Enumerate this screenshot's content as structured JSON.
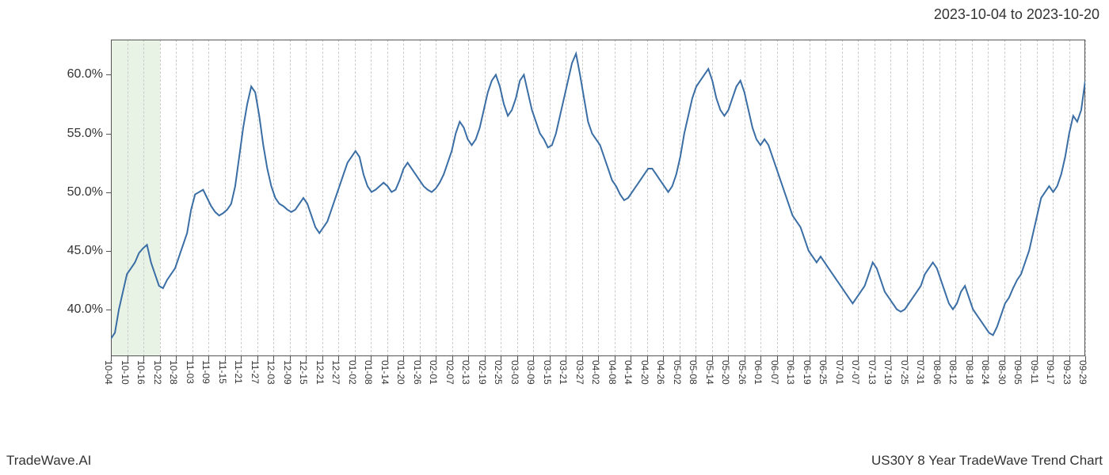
{
  "header": {
    "date_range": "2023-10-04 to 2023-10-20"
  },
  "footer": {
    "brand": "TradeWave.AI",
    "chart_title": "US30Y 8 Year TradeWave Trend Chart"
  },
  "chart": {
    "type": "line",
    "line_color": "#3a6ea5",
    "line_width": 2,
    "background_color": "#ffffff",
    "border_color": "#555555",
    "grid_color": "#cccccc",
    "grid_style": "dashed",
    "text_color": "#333333",
    "y_axis": {
      "min": 36,
      "max": 63,
      "ticks": [
        40.0,
        45.0,
        50.0,
        55.0,
        60.0
      ],
      "tick_labels": [
        "40.0%",
        "45.0%",
        "50.0%",
        "55.0%",
        "60.0%"
      ],
      "label_fontsize": 16
    },
    "x_axis": {
      "tick_labels": [
        "10-04",
        "10-10",
        "10-16",
        "10-22",
        "10-28",
        "11-03",
        "11-09",
        "11-15",
        "11-21",
        "11-27",
        "12-03",
        "12-09",
        "12-15",
        "12-21",
        "12-27",
        "01-02",
        "01-08",
        "01-14",
        "01-20",
        "01-26",
        "02-01",
        "02-07",
        "02-13",
        "02-19",
        "02-25",
        "03-03",
        "03-09",
        "03-15",
        "03-21",
        "03-27",
        "04-02",
        "04-08",
        "04-14",
        "04-20",
        "04-26",
        "05-02",
        "05-08",
        "05-14",
        "05-20",
        "05-26",
        "06-01",
        "06-07",
        "06-13",
        "06-19",
        "06-25",
        "07-01",
        "07-07",
        "07-13",
        "07-19",
        "07-25",
        "07-31",
        "08-06",
        "08-12",
        "08-18",
        "08-24",
        "08-30",
        "09-05",
        "09-11",
        "09-17",
        "09-23",
        "09-29"
      ],
      "label_fontsize": 12,
      "label_rotation": 90
    },
    "highlight_band": {
      "start_index": 0,
      "end_index": 3,
      "fill_color": "#d9ebd5",
      "opacity": 0.6
    },
    "data": {
      "length": 244,
      "values": [
        37.5,
        38.0,
        40.0,
        41.5,
        43.0,
        43.5,
        44.0,
        44.8,
        45.2,
        45.5,
        44.0,
        43.0,
        42.0,
        41.8,
        42.5,
        43.0,
        43.5,
        44.5,
        45.5,
        46.5,
        48.5,
        49.8,
        50.0,
        50.2,
        49.5,
        48.8,
        48.3,
        48.0,
        48.2,
        48.5,
        49.0,
        50.5,
        53.0,
        55.5,
        57.5,
        59.0,
        58.5,
        56.5,
        54.0,
        52.0,
        50.5,
        49.5,
        49.0,
        48.8,
        48.5,
        48.3,
        48.5,
        49.0,
        49.5,
        49.0,
        48.0,
        47.0,
        46.5,
        47.0,
        47.5,
        48.5,
        49.5,
        50.5,
        51.5,
        52.5,
        53.0,
        53.5,
        53.0,
        51.5,
        50.5,
        50.0,
        50.2,
        50.5,
        50.8,
        50.5,
        50.0,
        50.2,
        51.0,
        52.0,
        52.5,
        52.0,
        51.5,
        51.0,
        50.5,
        50.2,
        50.0,
        50.3,
        50.8,
        51.5,
        52.5,
        53.5,
        55.0,
        56.0,
        55.5,
        54.5,
        54.0,
        54.5,
        55.5,
        57.0,
        58.5,
        59.5,
        60.0,
        59.0,
        57.5,
        56.5,
        57.0,
        58.0,
        59.5,
        60.0,
        58.5,
        57.0,
        56.0,
        55.0,
        54.5,
        53.8,
        54.0,
        55.0,
        56.5,
        58.0,
        59.5,
        61.0,
        61.8,
        60.0,
        58.0,
        56.0,
        55.0,
        54.5,
        54.0,
        53.0,
        52.0,
        51.0,
        50.5,
        49.8,
        49.3,
        49.5,
        50.0,
        50.5,
        51.0,
        51.5,
        52.0,
        52.0,
        51.5,
        51.0,
        50.5,
        50.0,
        50.5,
        51.5,
        53.0,
        55.0,
        56.5,
        58.0,
        59.0,
        59.5,
        60.0,
        60.5,
        59.5,
        58.0,
        57.0,
        56.5,
        57.0,
        58.0,
        59.0,
        59.5,
        58.5,
        57.0,
        55.5,
        54.5,
        54.0,
        54.5,
        54.0,
        53.0,
        52.0,
        51.0,
        50.0,
        49.0,
        48.0,
        47.5,
        47.0,
        46.0,
        45.0,
        44.5,
        44.0,
        44.5,
        44.0,
        43.5,
        43.0,
        42.5,
        42.0,
        41.5,
        41.0,
        40.5,
        41.0,
        41.5,
        42.0,
        43.0,
        44.0,
        43.5,
        42.5,
        41.5,
        41.0,
        40.5,
        40.0,
        39.8,
        40.0,
        40.5,
        41.0,
        41.5,
        42.0,
        43.0,
        43.5,
        44.0,
        43.5,
        42.5,
        41.5,
        40.5,
        40.0,
        40.5,
        41.5,
        42.0,
        41.0,
        40.0,
        39.5,
        39.0,
        38.5,
        38.0,
        37.8,
        38.5,
        39.5,
        40.5,
        41.0,
        41.8,
        42.5,
        43.0,
        44.0,
        45.0,
        46.5,
        48.0,
        49.5,
        50.0,
        50.5,
        50.0,
        50.5,
        51.5,
        53.0,
        55.0,
        56.5,
        56.0,
        57.0,
        59.5
      ]
    }
  }
}
